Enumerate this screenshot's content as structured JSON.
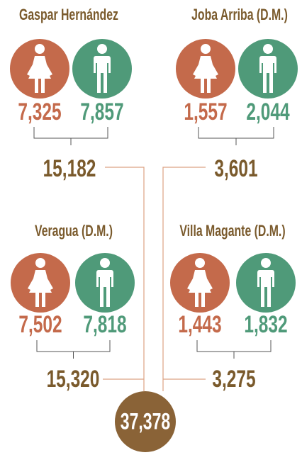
{
  "regions": [
    {
      "name": "Gaspar Hernández",
      "female": "7,325",
      "male": "7,857",
      "total": "15,182"
    },
    {
      "name": "Joba Arriba (D.M.)",
      "female": "1,557",
      "male": "2,044",
      "total": "3,601"
    },
    {
      "name": "Veragua (D.M.)",
      "female": "7,502",
      "male": "7,818",
      "total": "15,320"
    },
    {
      "name": "Villa Magante (D.M.)",
      "female": "1,443",
      "male": "1,832",
      "total": "3,275"
    }
  ],
  "total": "37,378"
}
